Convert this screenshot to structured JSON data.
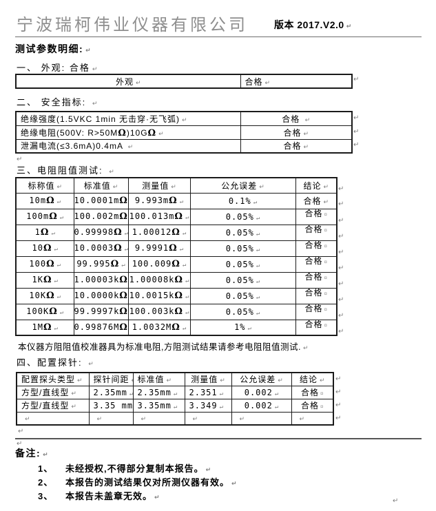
{
  "glyphs": {
    "p": "↵",
    "c": "¤"
  },
  "colors": {
    "company_gray": "#8e8e8e",
    "text": "#000000",
    "border": "#1a1a1a"
  },
  "header": {
    "company": "宁波瑞柯伟业仪器有限公司",
    "version": "版本 2017.V2.0"
  },
  "doc": {
    "title": "测试参数明细:"
  },
  "s1": {
    "heading": "一、 外观: 合格",
    "table": {
      "rows": [
        [
          "外观",
          "合格"
        ]
      ]
    }
  },
  "s2": {
    "heading": "二、 安全指标: ",
    "table": {
      "rows": [
        [
          "绝缘强度(1.5VKC 1min 无击穿·无飞弧)",
          "合格 "
        ],
        [
          "绝缘电阻(500V: R>50MΩ)10GΩ",
          "合格"
        ],
        [
          "泄漏电流(≤3.6mA)0.4mA ",
          "合格"
        ]
      ]
    }
  },
  "s3": {
    "heading": "三、电阻阻值测试: ",
    "table": {
      "headers": [
        "标称值",
        "标准值",
        "测量值",
        "公允误差",
        "结论"
      ],
      "rows": [
        [
          "10mΩ",
          "10.0001mΩ",
          "9.993mΩ",
          "0.1%",
          "合格"
        ],
        [
          "100mΩ",
          "100.002mΩ",
          "100.013mΩ",
          "0.05%",
          "合格"
        ],
        [
          "1Ω",
          "0.99998Ω",
          "1.00012Ω",
          "0.05%",
          "合格"
        ],
        [
          "10Ω",
          "10.0003Ω",
          "9.9991Ω",
          "0.05%",
          "合格"
        ],
        [
          "100Ω",
          "99.995Ω",
          "100.009Ω",
          "0.05%",
          "合格"
        ],
        [
          "1KΩ",
          "1.00003kΩ",
          "1.00008kΩ",
          "0.05%",
          "合格"
        ],
        [
          "10KΩ",
          "10.0000kΩ",
          "10.0015kΩ",
          "0.05%",
          "合格"
        ],
        [
          "100KΩ",
          "99.9997kΩ",
          "100.003kΩ",
          "0.05%",
          "合格"
        ],
        [
          "1MΩ",
          "0.99876MΩ",
          "1.0032MΩ",
          "1%",
          "合格"
        ]
      ]
    },
    "note": "本仪器方阻阻值校准器具为标准电阻,方阻测试结果请参考电阻阻值测试."
  },
  "s4": {
    "heading": "四、配置探针: ",
    "table": {
      "headers": [
        "配置探头类型",
        "探针间距",
        "标准值",
        "测量值",
        "公允误差",
        "结论"
      ],
      "rows": [
        [
          "方型/直线型",
          "2.35mm",
          "2.35mm",
          "2.351",
          "0.002",
          "合格"
        ],
        [
          "方型/直线型",
          "3.35 mm",
          "3.35mm",
          "3.349",
          "0.002",
          "合格"
        ],
        [
          "",
          "",
          "",
          "",
          "",
          ""
        ]
      ]
    }
  },
  "remarks": {
    "heading": "备注:",
    "items": [
      {
        "num": "1、",
        "text": "未经授权,不得部分复制本报告。"
      },
      {
        "num": "2、",
        "text": "本报告的测试结果仅对所测仪器有效。"
      },
      {
        "num": "3、",
        "text": "本报告未盖章无效。"
      }
    ]
  }
}
